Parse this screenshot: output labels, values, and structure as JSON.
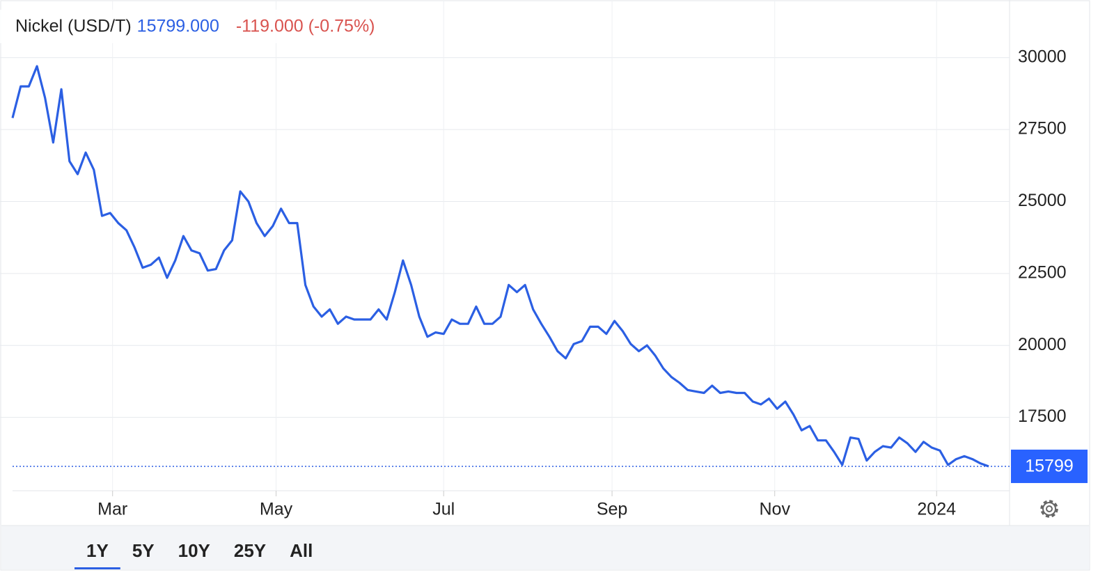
{
  "chart_data": {
    "type": "line",
    "title": "Nickel (USD/T)",
    "price": "15799.000",
    "change": "-119.000 (-0.75%)",
    "series": [
      {
        "name": "Nickel (USD/T)",
        "color": "#2b5fe3",
        "values": [
          27900,
          29000,
          29000,
          29700,
          28600,
          27050,
          28900,
          26400,
          25950,
          26700,
          26100,
          24500,
          24600,
          24250,
          24000,
          23400,
          22700,
          22800,
          23050,
          22350,
          22950,
          23800,
          23300,
          23200,
          22600,
          22650,
          23300,
          23650,
          25350,
          25000,
          24250,
          23800,
          24150,
          24750,
          24250,
          24250,
          22100,
          21350,
          21000,
          21250,
          20750,
          21000,
          20900,
          20900,
          20900,
          21250,
          20900,
          21850,
          22950,
          22100,
          21000,
          20300,
          20450,
          20400,
          20900,
          20750,
          20750,
          21350,
          20750,
          20750,
          21000,
          22100,
          21850,
          22100,
          21250,
          20750,
          20300,
          19800,
          19550,
          20050,
          20150,
          20650,
          20650,
          20400,
          20850,
          20500,
          20050,
          19800,
          20000,
          19650,
          19200,
          18900,
          18700,
          18450,
          18400,
          18350,
          18600,
          18350,
          18400,
          18350,
          18350,
          18050,
          17950,
          18150,
          17800,
          18050,
          17600,
          17050,
          17200,
          16700,
          16700,
          16300,
          15850,
          16800,
          16750,
          16000,
          16300,
          16500,
          16450,
          16800,
          16600,
          16300,
          16650,
          16450,
          16350,
          15850,
          16050,
          16150,
          16050,
          15900,
          15799
        ]
      }
    ],
    "xlim": [
      0,
      120
    ],
    "xticks": [
      {
        "value": 12.3,
        "label": "Mar"
      },
      {
        "value": 32.4,
        "label": "May"
      },
      {
        "value": 53,
        "label": "Jul"
      },
      {
        "value": 73.7,
        "label": "Sep"
      },
      {
        "value": 93.7,
        "label": "Nov"
      },
      {
        "value": 113.6,
        "label": "2024"
      }
    ],
    "ylim": [
      15000,
      32000
    ],
    "yticks": [
      17500,
      20000,
      22500,
      25000,
      27500,
      30000
    ],
    "grid": true
  },
  "range_buttons": [
    "1Y",
    "5Y",
    "10Y",
    "25Y",
    "All"
  ],
  "selected_range": "1Y"
}
